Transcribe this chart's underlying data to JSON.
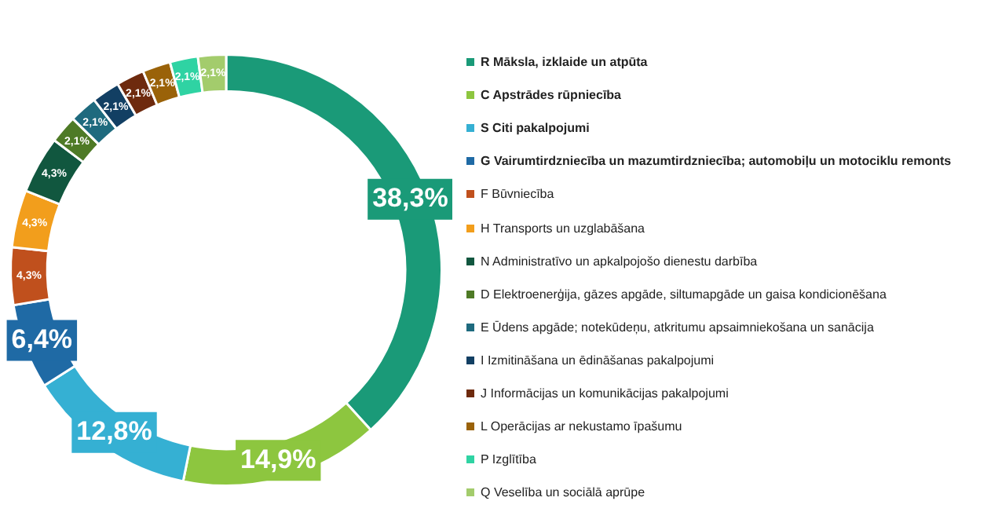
{
  "chart_data": {
    "type": "donut",
    "legend": "right",
    "categories": [
      "R Māksla, izklaide un atpūta",
      "C Apstrādes rūpniecība",
      "S Citi pakalpojumi",
      "G Vairumtirdzniecība un mazumtirdzniecība; automobiļu un motociklu remonts",
      "F Būvniecība",
      "H Transports un uzglabāšana",
      "N Administratīvo un apkalpojošo dienestu darbība",
      "D Elektroenerģija, gāzes apgāde, siltumapgāde un gaisa kondicionēšana",
      "E Ūdens apgāde; notekūdeņu, atkritumu apsaimniekošana un sanācija",
      "I Izmitināšana un ēdināšanas pakalpojumi",
      "J Informācijas un komunikācijas pakalpojumi",
      "L Operācijas ar nekustamo īpašumu",
      "P Izglītība",
      "Q Veselība un sociālā aprūpe"
    ],
    "values": [
      38.3,
      14.9,
      12.8,
      6.4,
      4.3,
      4.3,
      4.3,
      2.1,
      2.1,
      2.1,
      2.1,
      2.1,
      2.1,
      2.1
    ],
    "value_labels": [
      "38,3%",
      "14,9%",
      "12,8%",
      "6,4%",
      "4,3%",
      "4,3%",
      "4,3%",
      "2,1%",
      "2,1%",
      "2,1%",
      "2,1%",
      "2,1%",
      "2,1%",
      "2,1%"
    ],
    "colors": [
      "#1a9a78",
      "#8dc63f",
      "#35b0d3",
      "#1f6aa5",
      "#c0501d",
      "#f29e1c",
      "#11573f",
      "#4e7a26",
      "#1e6a7e",
      "#123f63",
      "#6e2a0e",
      "#9a6209",
      "#2fd3a3",
      "#a3cc6c"
    ]
  }
}
